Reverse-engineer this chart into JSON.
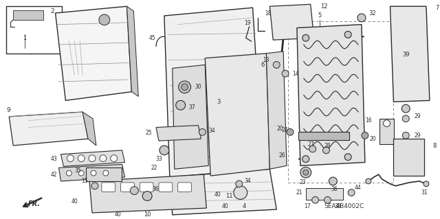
{
  "fig_width": 6.4,
  "fig_height": 3.19,
  "dpi": 100,
  "bg": "#ffffff",
  "diagram_code": "SEA4B4002C",
  "line_color": "#2a2a2a",
  "gray_fill": "#d8d8d8",
  "light_fill": "#eeeeee",
  "mid_fill": "#c8c8c8"
}
